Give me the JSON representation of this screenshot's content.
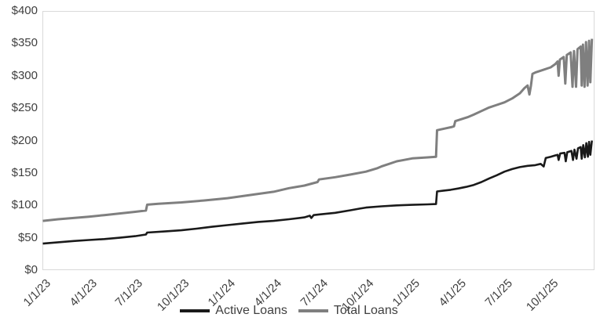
{
  "colors": {
    "background": "#ffffff",
    "plot_border": "#d9d9d9",
    "axis_text": "#404040",
    "active_loans_line": "#1a1a1a",
    "total_loans_line": "#7f7f7f"
  },
  "legend": {
    "items": [
      {
        "label": "Active Loans",
        "color": "#1a1a1a"
      },
      {
        "label": "Total Loans",
        "color": "#7f7f7f"
      }
    ]
  },
  "chart_data": {
    "type": "line",
    "title": "",
    "xlabel": "",
    "ylabel": "",
    "grid": "off",
    "legend_position": "bottom-center",
    "x_unit": "months since 1/1/2023",
    "x_range_months": [
      0,
      35.85
    ],
    "y_range": [
      0,
      400
    ],
    "y_ticks": [
      {
        "label": "$0",
        "value": 0
      },
      {
        "label": "$50",
        "value": 50
      },
      {
        "label": "$100",
        "value": 100
      },
      {
        "label": "$150",
        "value": 150
      },
      {
        "label": "$200",
        "value": 200
      },
      {
        "label": "$250",
        "value": 250
      },
      {
        "label": "$300",
        "value": 300
      },
      {
        "label": "$350",
        "value": 350
      },
      {
        "label": "$400",
        "value": 400
      }
    ],
    "x_ticks": [
      {
        "label": "1/1/23",
        "month": 0
      },
      {
        "label": "4/1/23",
        "month": 3
      },
      {
        "label": "7/1/23",
        "month": 6
      },
      {
        "label": "10/1/23",
        "month": 9
      },
      {
        "label": "1/1/24",
        "month": 12
      },
      {
        "label": "4/1/24",
        "month": 15
      },
      {
        "label": "7/1/24",
        "month": 18
      },
      {
        "label": "10/1/24",
        "month": 21
      },
      {
        "label": "1/1/25",
        "month": 24
      },
      {
        "label": "4/1/25",
        "month": 27
      },
      {
        "label": "7/1/25",
        "month": 30
      },
      {
        "label": "10/1/25",
        "month": 33
      }
    ],
    "series": [
      {
        "name": "Active Loans",
        "color": "#1a1a1a",
        "stroke_width": 2.6,
        "points": [
          [
            0,
            41
          ],
          [
            1,
            43
          ],
          [
            2,
            45
          ],
          [
            3,
            46.5
          ],
          [
            4,
            48
          ],
          [
            5,
            50
          ],
          [
            6,
            52.5
          ],
          [
            6.7,
            55
          ],
          [
            6.78,
            58
          ],
          [
            8,
            60
          ],
          [
            9,
            61.5
          ],
          [
            10,
            64
          ],
          [
            11,
            67
          ],
          [
            12,
            69.5
          ],
          [
            13,
            72
          ],
          [
            14,
            74.5
          ],
          [
            15,
            76
          ],
          [
            16,
            78.5
          ],
          [
            17,
            81.5
          ],
          [
            17.35,
            84
          ],
          [
            17.45,
            80.5
          ],
          [
            17.6,
            85
          ],
          [
            18,
            86
          ],
          [
            19,
            88.5
          ],
          [
            20,
            92.5
          ],
          [
            20.6,
            95
          ],
          [
            21,
            96.5
          ],
          [
            22,
            98.5
          ],
          [
            23,
            100
          ],
          [
            24,
            100.8
          ],
          [
            25,
            101.5
          ],
          [
            25.55,
            102
          ],
          [
            25.62,
            121.5
          ],
          [
            26,
            122.5
          ],
          [
            26.5,
            124
          ],
          [
            27,
            126
          ],
          [
            27.5,
            128.5
          ],
          [
            28,
            131.5
          ],
          [
            28.5,
            136
          ],
          [
            29,
            141.5
          ],
          [
            29.5,
            146.5
          ],
          [
            30,
            152
          ],
          [
            30.5,
            156
          ],
          [
            31,
            159
          ],
          [
            31.5,
            161
          ],
          [
            32,
            162
          ],
          [
            32.35,
            164
          ],
          [
            32.55,
            160
          ],
          [
            32.68,
            173
          ],
          [
            33,
            175
          ],
          [
            33.3,
            177
          ],
          [
            33.45,
            178
          ],
          [
            33.52,
            170
          ],
          [
            33.62,
            180
          ],
          [
            33.9,
            181
          ],
          [
            33.98,
            168
          ],
          [
            34.08,
            182
          ],
          [
            34.35,
            184
          ],
          [
            34.45,
            170
          ],
          [
            34.55,
            186
          ],
          [
            34.68,
            172
          ],
          [
            34.78,
            188
          ],
          [
            34.95,
            190
          ],
          [
            35.02,
            172
          ],
          [
            35.12,
            193
          ],
          [
            35.22,
            174
          ],
          [
            35.32,
            196
          ],
          [
            35.42,
            175
          ],
          [
            35.5,
            198
          ],
          [
            35.58,
            178
          ],
          [
            35.68,
            200
          ]
        ]
      },
      {
        "name": "Total Loans",
        "color": "#7f7f7f",
        "stroke_width": 3,
        "points": [
          [
            0,
            76
          ],
          [
            1,
            78.5
          ],
          [
            2,
            80.5
          ],
          [
            3,
            82.5
          ],
          [
            4,
            85
          ],
          [
            5,
            87.5
          ],
          [
            6,
            90
          ],
          [
            6.7,
            92
          ],
          [
            6.78,
            101
          ],
          [
            7.5,
            102.5
          ],
          [
            9,
            104.5
          ],
          [
            10.5,
            107.5
          ],
          [
            12,
            111
          ],
          [
            13.5,
            116
          ],
          [
            15,
            121
          ],
          [
            16,
            126.5
          ],
          [
            17,
            130.5
          ],
          [
            17.85,
            136
          ],
          [
            17.95,
            140
          ],
          [
            19,
            143.5
          ],
          [
            20,
            147.5
          ],
          [
            21,
            152
          ],
          [
            21.7,
            157
          ],
          [
            22,
            160
          ],
          [
            22.5,
            164
          ],
          [
            23,
            168
          ],
          [
            24,
            172.5
          ],
          [
            25,
            174
          ],
          [
            25.55,
            175
          ],
          [
            25.62,
            216
          ],
          [
            26.2,
            219
          ],
          [
            26.6,
            221
          ],
          [
            26.72,
            222
          ],
          [
            26.8,
            230
          ],
          [
            27.2,
            233
          ],
          [
            27.6,
            236
          ],
          [
            28,
            240
          ],
          [
            28.5,
            245.5
          ],
          [
            29,
            251
          ],
          [
            29.5,
            255
          ],
          [
            30,
            259
          ],
          [
            30.5,
            265
          ],
          [
            31,
            273
          ],
          [
            31.3,
            281
          ],
          [
            31.5,
            285
          ],
          [
            31.62,
            271
          ],
          [
            31.72,
            285
          ],
          [
            31.82,
            303
          ],
          [
            32,
            305
          ],
          [
            32.5,
            309
          ],
          [
            33,
            313
          ],
          [
            33.3,
            318
          ],
          [
            33.45,
            322
          ],
          [
            33.52,
            300
          ],
          [
            33.6,
            325
          ],
          [
            33.85,
            329
          ],
          [
            33.95,
            288
          ],
          [
            34.05,
            332
          ],
          [
            34.3,
            336
          ],
          [
            34.42,
            283
          ],
          [
            34.52,
            338
          ],
          [
            34.65,
            283
          ],
          [
            34.75,
            341
          ],
          [
            34.95,
            345
          ],
          [
            35.02,
            285
          ],
          [
            35.1,
            348
          ],
          [
            35.2,
            283
          ],
          [
            35.3,
            352
          ],
          [
            35.4,
            285
          ],
          [
            35.5,
            354
          ],
          [
            35.58,
            290
          ],
          [
            35.68,
            357
          ]
        ]
      }
    ]
  }
}
